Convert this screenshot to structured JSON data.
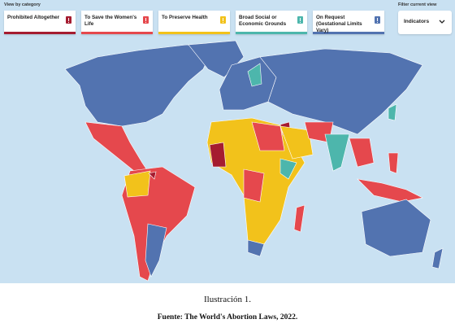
{
  "filter_panel": {
    "label": "View by category",
    "categories": [
      {
        "label": "Prohibited Altogether",
        "color": "#a51c30"
      },
      {
        "label": "To Save the Women's Life",
        "color": "#e5484d"
      },
      {
        "label": "To Preserve Health",
        "color": "#f2c21b"
      },
      {
        "label": "Broad Social or Economic Grounds",
        "color": "#4db6ac"
      },
      {
        "label": "On Request (Gestational Limits Vary)",
        "color": "#5273b0"
      }
    ]
  },
  "view_filter": {
    "label": "Filter current view",
    "value": "Indicators"
  },
  "caption": {
    "title": "Ilustración 1.",
    "source": "Fuente: The World's Abortion Laws, 2022."
  }
}
